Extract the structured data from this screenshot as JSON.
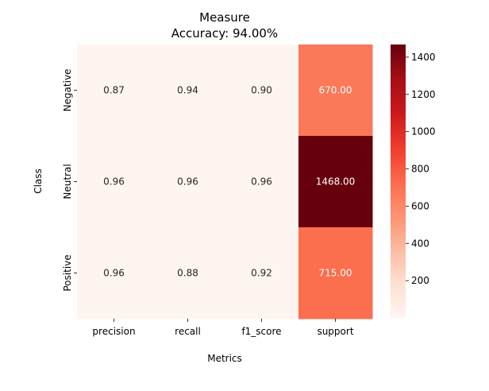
{
  "chart_data": {
    "type": "heatmap",
    "title": "Measure",
    "subtitle": "Accuracy: 94.00%",
    "xlabel": "Metrics",
    "ylabel": "Class",
    "x_categories": [
      "precision",
      "recall",
      "f1_score",
      "support"
    ],
    "y_categories": [
      "Negative",
      "Neutral",
      "Positive"
    ],
    "values": [
      [
        0.87,
        0.94,
        0.9,
        670.0
      ],
      [
        0.96,
        0.96,
        0.96,
        1468.0
      ],
      [
        0.96,
        0.88,
        0.92,
        715.0
      ]
    ],
    "value_format": "2 decimals",
    "colormap": "Reds",
    "colorbar": {
      "range": [
        0,
        1468
      ],
      "ticks": [
        200,
        400,
        600,
        800,
        1000,
        1200,
        1400
      ]
    },
    "colors": {
      "min": "#fff5f0",
      "max": "#67000d"
    }
  }
}
